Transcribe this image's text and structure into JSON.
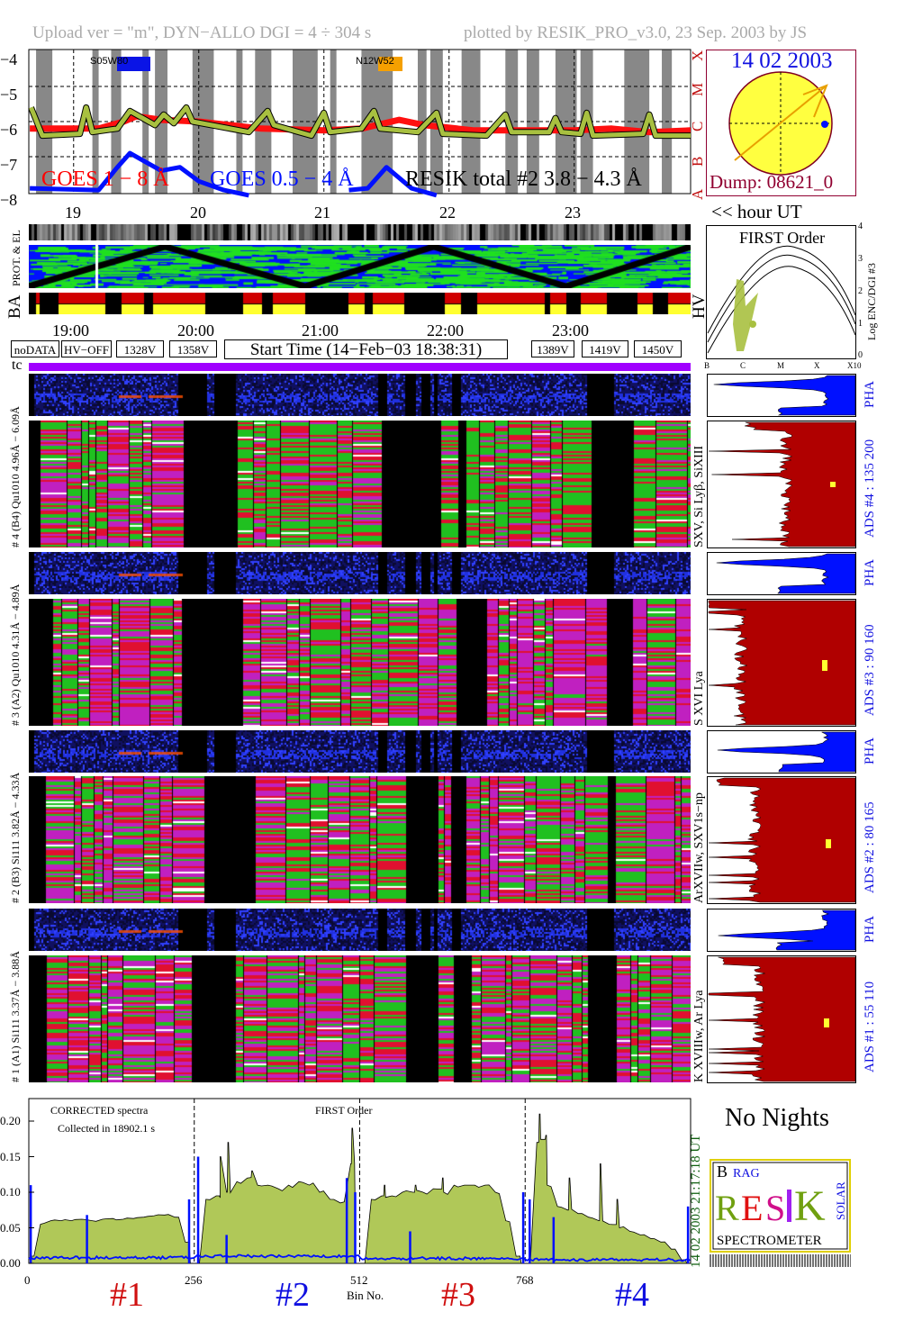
{
  "header": {
    "left": "Upload ver = \"m\", DYN−ALLO DGI =   4 ÷ 304 s",
    "right": "plotted by RESIK_PRO_v3.0, 23 Sep. 2003 by JS"
  },
  "lightcurve": {
    "y_ticks": [
      "−4",
      "−5",
      "−6",
      "−7",
      "−8"
    ],
    "class_letters": [
      "A",
      "B",
      "C",
      "M",
      "X"
    ],
    "region_labels": [
      "S05W80",
      "N12W52"
    ],
    "region_colors": [
      "#0a14e6",
      "#f5a000"
    ],
    "legend": {
      "goes_long": "GOES 1 − 8 Å",
      "goes_short": "GOES 0.5 − 4 Å",
      "resik": "RESIK total #2  3.8 − 4.3 Å"
    },
    "hour_ticks": [
      "19",
      "20",
      "21",
      "22",
      "23"
    ],
    "hour_unit": "<< hour UT"
  },
  "disk": {
    "date": "14 02 2003",
    "dump": "Dump: 08621_0"
  },
  "strips": {
    "prot_label": "PROT. & EL",
    "ba_label": "BA",
    "hv_label": "HV",
    "time_ticks": [
      "19:00",
      "20:00",
      "21:00",
      "22:00",
      "23:00"
    ],
    "tc_label": "tc"
  },
  "legend_boxes": [
    {
      "label": "noDATA",
      "color": "#999999",
      "text": "#ffffff"
    },
    {
      "label": "HV−OFF",
      "color": "#000000",
      "text": "#ffffff"
    },
    {
      "label": "1328V",
      "color": "#ffffc0",
      "text": "#000000"
    },
    {
      "label": "1358V",
      "color": "#0010ff",
      "text": "#ffffff"
    },
    {
      "label": "1389V",
      "color": "#ffa030",
      "text": "#ffffff"
    },
    {
      "label": "1419V",
      "color": "#ffff30",
      "text": "#000000"
    },
    {
      "label": "1450V",
      "color": "#d00000",
      "text": "#ffffff"
    }
  ],
  "start_time": "Start Time (14−Feb−03 18:38:31)",
  "first_order_panel": {
    "title": "FIRST Order",
    "y_label": "Log ENC/DGI #3",
    "y_ticks": [
      "0",
      "1",
      "2",
      "3",
      "4"
    ],
    "x_ticks": [
      "B",
      "C",
      "M",
      "X",
      "X10"
    ]
  },
  "channels": [
    {
      "left": "# 4 (B4) Qu1010 4.96Å − 6.09Å",
      "lines": "SXV, Si Lyβ, SiXIII",
      "ads": "ADS #4 :   135 200",
      "pha": "PHA"
    },
    {
      "left": "# 3 (A2) Qu1010 4.31Å − 4.89Å",
      "lines": "S XVI Lya",
      "ads": "ADS #3 :   90 160",
      "pha": "PHA"
    },
    {
      "left": "# 2 (B3) Si111 3.82Å − 4.33Å",
      "lines": "ArXVIIw, SXV1s−np",
      "ads": "ADS #2 :   80 165",
      "pha": "PHA"
    },
    {
      "left": "# 1 (A1) Si111 3.37Å − 3.88Å",
      "lines": "K XVIIIw, Ar Lya",
      "ads": "ADS #1 :   55 110",
      "pha": "PHA"
    }
  ],
  "no_nights": "No Nights",
  "logo": {
    "text": "BRAGG RESIK SOLAR SPECTROMETER",
    "bottom": "SPECTROMETER"
  },
  "chart_data": {
    "type": "area",
    "title": "FIRST Order",
    "annotations": [
      "CORRECTED spectra",
      "Collected in 18902.1 s"
    ],
    "xlabel": "Bin No.",
    "ylabel": "",
    "xlim": [
      0,
      1024
    ],
    "ylim": [
      0,
      0.23
    ],
    "x_ticks": [
      "0",
      "256",
      "512",
      "768"
    ],
    "y_ticks": [
      "0.00",
      "0.05",
      "0.10",
      "0.15",
      "0.20"
    ],
    "timestamp": "14 02 2003   21:17:18 UT",
    "channel_labels": [
      {
        "label": "#1",
        "color": "#d01010"
      },
      {
        "label": "#2",
        "color": "#1010e0"
      },
      {
        "label": "#3",
        "color": "#d01010"
      },
      {
        "label": "#4",
        "color": "#1010e0"
      }
    ],
    "bin_step": 16,
    "corrected_spectrum": [
      0.01,
      0.055,
      0.06,
      0.06,
      0.06,
      0.062,
      0.06,
      0.062,
      0.063,
      0.062,
      0.063,
      0.065,
      0.067,
      0.068,
      0.065,
      0.03,
      0.0,
      0.09,
      0.095,
      0.1,
      0.115,
      0.12,
      0.11,
      0.11,
      0.105,
      0.11,
      0.115,
      0.11,
      0.1,
      0.09,
      0.085,
      0.14,
      0.0,
      0.09,
      0.095,
      0.095,
      0.1,
      0.1,
      0.1,
      0.105,
      0.1,
      0.11,
      0.11,
      0.11,
      0.11,
      0.1,
      0.06,
      0.01,
      0.0,
      0.17,
      0.11,
      0.08,
      0.075,
      0.07,
      0.065,
      0.06,
      0.055,
      0.05,
      0.045,
      0.04,
      0.035,
      0.03,
      0.02,
      0.005
    ],
    "spectrum_peaks": [
      [
        296,
        0.15
      ],
      [
        308,
        0.17
      ],
      [
        345,
        0.13
      ],
      [
        500,
        0.19
      ],
      [
        550,
        0.11
      ],
      [
        598,
        0.11
      ],
      [
        640,
        0.12
      ],
      [
        790,
        0.21
      ],
      [
        800,
        0.18
      ],
      [
        836,
        0.12
      ],
      [
        884,
        0.14
      ],
      [
        910,
        0.09
      ]
    ],
    "background_level": [
      0.008,
      0.01,
      0.007,
      0.005
    ],
    "background_spikes": [
      [
        3,
        0.11
      ],
      [
        90,
        0.068
      ],
      [
        248,
        0.09
      ],
      [
        262,
        0.15
      ],
      [
        306,
        0.04
      ],
      [
        492,
        0.12
      ],
      [
        505,
        0.1
      ],
      [
        590,
        0.045
      ],
      [
        765,
        0.1
      ],
      [
        775,
        0.09
      ],
      [
        812,
        0.065
      ],
      [
        1020,
        0.08
      ]
    ],
    "lightcurves": {
      "x_unit": "hour UT",
      "xlim": [
        18.642,
        23.93
      ],
      "ylim": [
        -8.1,
        -3.9
      ],
      "goes_long": [
        [
          18.65,
          -6.2
        ],
        [
          19.2,
          -6.2
        ],
        [
          19.4,
          -6.0
        ],
        [
          19.5,
          -5.85
        ],
        [
          19.7,
          -5.95
        ],
        [
          20.0,
          -6.0
        ],
        [
          20.5,
          -6.2
        ],
        [
          21.0,
          -6.25
        ],
        [
          21.3,
          -6.2
        ],
        [
          21.6,
          -5.95
        ],
        [
          21.8,
          -6.1
        ],
        [
          22.2,
          -6.25
        ],
        [
          23.0,
          -6.25
        ],
        [
          23.3,
          -6.2
        ],
        [
          23.6,
          -6.3
        ],
        [
          23.93,
          -6.25
        ]
      ],
      "goes_short": [
        [
          18.65,
          -7.9
        ],
        [
          19.2,
          -7.95
        ],
        [
          19.35,
          -7.3
        ],
        [
          19.45,
          -6.9
        ],
        [
          19.6,
          -7.2
        ],
        [
          19.7,
          -7.4
        ],
        [
          19.85,
          -7.3
        ],
        [
          20.0,
          -7.7
        ],
        [
          20.2,
          -7.95
        ],
        [
          20.4,
          -8.1
        ],
        null,
        [
          21.2,
          -7.95
        ],
        [
          21.35,
          -7.9
        ],
        [
          21.5,
          -7.3
        ],
        [
          21.7,
          -7.9
        ],
        [
          21.9,
          -8.1
        ]
      ],
      "resik_total": [
        [
          18.66,
          -5.6
        ],
        [
          18.75,
          -6.4
        ],
        [
          19.05,
          -6.35
        ],
        [
          19.1,
          -5.6
        ],
        [
          19.15,
          -6.3
        ],
        [
          19.35,
          -6.2
        ],
        [
          19.45,
          -5.7
        ],
        [
          19.55,
          -5.9
        ],
        [
          19.65,
          -6.1
        ],
        [
          19.72,
          -5.8
        ],
        [
          19.8,
          -6.05
        ],
        [
          19.9,
          -5.6
        ],
        [
          19.95,
          -6.0
        ],
        [
          20.4,
          -6.3
        ],
        [
          20.55,
          -5.7
        ],
        [
          20.6,
          -6.1
        ],
        [
          20.9,
          -6.4
        ],
        [
          21.0,
          -5.75
        ],
        [
          21.05,
          -6.3
        ],
        [
          21.3,
          -6.2
        ],
        [
          21.4,
          -5.7
        ],
        [
          21.45,
          -6.2
        ],
        [
          21.75,
          -6.3
        ],
        [
          21.9,
          -5.75
        ],
        [
          21.95,
          -6.35
        ],
        [
          22.3,
          -6.4
        ],
        [
          22.45,
          -5.8
        ],
        [
          22.5,
          -6.3
        ],
        [
          22.8,
          -6.3
        ],
        [
          22.85,
          -5.9
        ],
        [
          22.9,
          -6.3
        ],
        [
          23.05,
          -6.35
        ],
        [
          23.1,
          -5.75
        ],
        [
          23.15,
          -6.4
        ],
        [
          23.55,
          -6.35
        ],
        [
          23.6,
          -5.8
        ],
        [
          23.65,
          -6.4
        ],
        [
          23.93,
          -6.4
        ]
      ],
      "night_bands": [
        [
          18.7,
          18.83
        ],
        [
          19.15,
          19.2
        ],
        [
          19.3,
          19.38
        ],
        [
          19.55,
          19.6
        ],
        [
          19.65,
          19.75
        ],
        [
          19.95,
          20.12
        ],
        [
          20.3,
          20.35
        ],
        [
          20.45,
          20.58
        ],
        [
          20.75,
          20.95
        ],
        [
          21.05,
          21.1
        ],
        [
          21.3,
          21.55
        ],
        [
          21.75,
          21.82
        ],
        [
          21.85,
          21.95
        ],
        [
          22.1,
          22.25
        ],
        [
          22.45,
          22.55
        ],
        [
          22.62,
          22.72
        ],
        [
          22.85,
          23.02
        ],
        [
          23.05,
          23.15
        ],
        [
          23.4,
          23.6
        ],
        [
          23.7,
          23.78
        ]
      ]
    }
  }
}
